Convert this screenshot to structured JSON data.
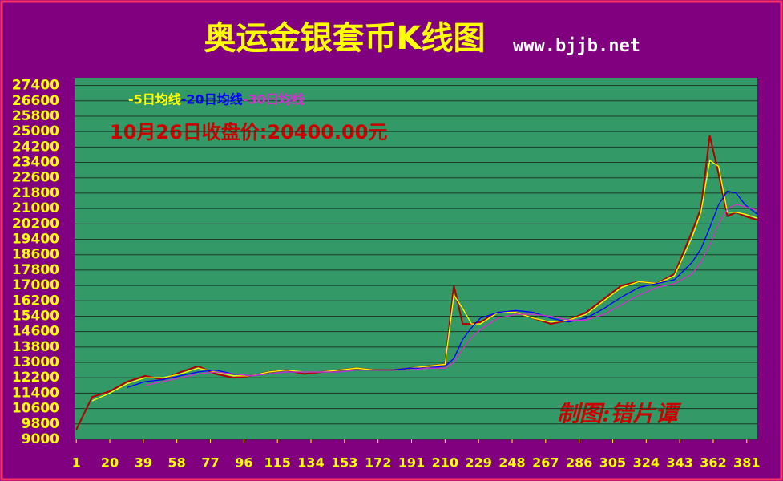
{
  "chart_data": {
    "type": "line",
    "title": "奥运金银套币K线图",
    "subtitle": "www.bjjb.net",
    "annotation": "10月26日收盘价:20400.00元",
    "credit": "制图:错片谭",
    "x": [
      1,
      10,
      20,
      30,
      40,
      50,
      60,
      70,
      80,
      90,
      100,
      110,
      120,
      130,
      140,
      150,
      160,
      170,
      180,
      190,
      200,
      210,
      215,
      220,
      225,
      230,
      240,
      250,
      260,
      270,
      280,
      290,
      300,
      310,
      320,
      330,
      340,
      350,
      355,
      360,
      365,
      370,
      375,
      380,
      387
    ],
    "values": [
      9500,
      11200,
      11500,
      12000,
      12300,
      12100,
      12500,
      12800,
      12400,
      12200,
      12300,
      12500,
      12600,
      12400,
      12500,
      12600,
      12700,
      12600,
      12600,
      12700,
      12800,
      12900,
      17000,
      15000,
      15000,
      15100,
      15600,
      15600,
      15300,
      15000,
      15200,
      15600,
      16300,
      17000,
      17200,
      17100,
      17600,
      19800,
      21000,
      24800,
      22800,
      20600,
      20800,
      20600,
      20400
    ],
    "color": "#b00000",
    "series": [
      {
        "name": "-5日均线",
        "color": "#ffff00",
        "values": [
          null,
          11000,
          11400,
          11900,
          12200,
          12200,
          12400,
          12700,
          12500,
          12300,
          12300,
          12500,
          12600,
          12500,
          12500,
          12600,
          12700,
          12600,
          12600,
          12700,
          12800,
          12900,
          16500,
          15800,
          15000,
          15000,
          15600,
          15600,
          15300,
          15100,
          15200,
          15500,
          16200,
          16900,
          17200,
          17100,
          17500,
          19500,
          20800,
          23500,
          23200,
          20800,
          20800,
          20700,
          20500
        ]
      },
      {
        "name": "-20日均线",
        "color": "#0000ff",
        "values": [
          null,
          null,
          null,
          11700,
          12000,
          12100,
          12300,
          12500,
          12600,
          12400,
          12300,
          12400,
          12500,
          12500,
          12500,
          12500,
          12600,
          12600,
          12600,
          12700,
          12700,
          12800,
          13200,
          14200,
          14800,
          15300,
          15600,
          15700,
          15600,
          15300,
          15100,
          15300,
          15800,
          16400,
          16900,
          17100,
          17300,
          18200,
          18900,
          20000,
          21200,
          21900,
          21800,
          21200,
          20700
        ]
      },
      {
        "name": "-30日均线",
        "color": "#cc33cc",
        "values": [
          null,
          null,
          null,
          null,
          11800,
          12000,
          12200,
          12400,
          12500,
          12400,
          12300,
          12400,
          12500,
          12500,
          12500,
          12500,
          12600,
          12600,
          12600,
          12600,
          12700,
          12700,
          13000,
          13700,
          14300,
          14700,
          15300,
          15500,
          15500,
          15400,
          15200,
          15200,
          15500,
          16000,
          16500,
          16900,
          17100,
          17600,
          18200,
          19100,
          20200,
          21000,
          21200,
          21100,
          20900
        ]
      }
    ],
    "xlim": [
      0,
      387
    ],
    "xticks": [
      1,
      20,
      39,
      58,
      77,
      96,
      115,
      134,
      153,
      172,
      191,
      210,
      229,
      248,
      267,
      286,
      305,
      324,
      343,
      362,
      381
    ],
    "ylim": [
      9000,
      27800
    ],
    "yticks": [
      9000,
      9800,
      10600,
      11400,
      12200,
      13000,
      13800,
      14600,
      15400,
      16200,
      17000,
      17800,
      18600,
      19400,
      20200,
      21000,
      21800,
      22600,
      23400,
      24200,
      25000,
      25800,
      26600,
      27400
    ],
    "grid": true
  }
}
